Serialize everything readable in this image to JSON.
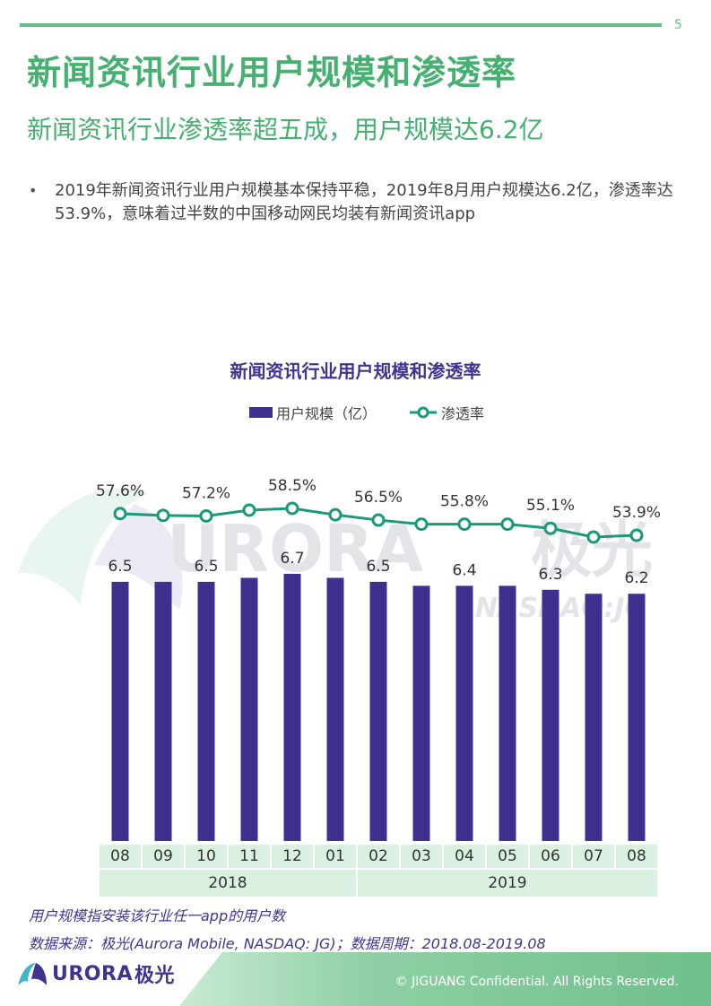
{
  "page": {
    "number": "5",
    "title": "新闻资讯行业用户规模和渗透率",
    "subtitle": "新闻资讯行业渗透率超五成，用户规模达6.2亿",
    "bullet": "2019年新闻资讯行业用户规模基本保持平稳，2019年8月用户规模达6.2亿，渗透率达53.9%，意味着过半数的中国移动网民均装有新闻资讯app"
  },
  "chart_data": {
    "type": "bar",
    "title": "新闻资讯行业用户规模和渗透率",
    "categories": [
      "08",
      "09",
      "10",
      "11",
      "12",
      "01",
      "02",
      "03",
      "04",
      "05",
      "06",
      "07",
      "08"
    ],
    "years": [
      {
        "label": "2018",
        "span": 6
      },
      {
        "label": "2019",
        "span": 7
      }
    ],
    "series": [
      {
        "name": "用户规模（亿）",
        "type": "bar",
        "color": "#3f2f8e",
        "values": [
          6.5,
          6.5,
          6.5,
          6.6,
          6.7,
          6.6,
          6.5,
          6.4,
          6.4,
          6.4,
          6.3,
          6.2,
          6.2
        ],
        "labels": [
          "6.5",
          "",
          "6.5",
          "",
          "6.7",
          "",
          "6.5",
          "",
          "6.4",
          "",
          "6.3",
          "",
          "6.2"
        ]
      },
      {
        "name": "渗透率",
        "type": "line",
        "color": "#1a9a7a",
        "values": [
          57.6,
          57.3,
          57.2,
          58.2,
          58.5,
          57.4,
          56.5,
          55.8,
          55.8,
          55.8,
          55.1,
          53.6,
          53.9
        ],
        "labels": [
          "57.6%",
          "",
          "57.2%",
          "",
          "58.5%",
          "",
          "56.5%",
          "",
          "55.8%",
          "",
          "55.1%",
          "",
          "53.9%"
        ]
      }
    ],
    "bar_axis_range": [
      0,
      6.7
    ],
    "line_axis_range": [
      53.6,
      58.5
    ]
  },
  "watermark": {
    "brand": "URORA",
    "brand_cn": "极光",
    "ticker": "NASDAQ:JG"
  },
  "notes": {
    "definition": "用户规模指安装该行业任一app的用户数",
    "source": "数据来源：极光(Aurora Mobile, NASDAQ: JG)；数据周期：2018.08-2019.08"
  },
  "footer": {
    "logo_text": "URORA",
    "logo_cn": "极光",
    "copyright": "© JIGUANG Confidential. All Rights Reserved."
  },
  "colors": {
    "accent_green": "#45b06f",
    "bar": "#3f2f8e",
    "line": "#1a9a7a",
    "axis_band": "#daf0e1"
  }
}
